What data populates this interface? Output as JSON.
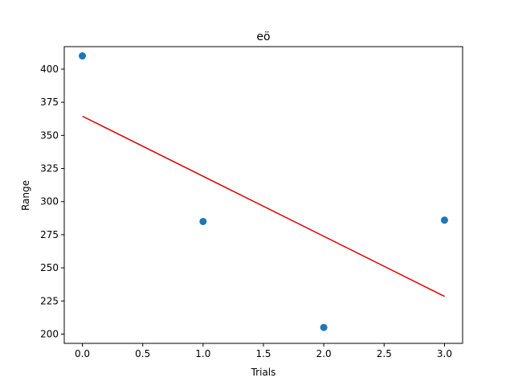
{
  "chart_data": {
    "type": "scatter",
    "title": "eö",
    "xlabel": "Trials",
    "ylabel": "Range",
    "xlim": [
      -0.15,
      3.15
    ],
    "ylim": [
      193,
      417
    ],
    "xticks": [
      0.0,
      0.5,
      1.0,
      1.5,
      2.0,
      2.5,
      3.0
    ],
    "xtick_labels": [
      "0.0",
      "0.5",
      "1.0",
      "1.5",
      "2.0",
      "2.5",
      "3.0"
    ],
    "yticks": [
      200,
      225,
      250,
      275,
      300,
      325,
      350,
      375,
      400
    ],
    "ytick_labels": [
      "200",
      "225",
      "250",
      "275",
      "300",
      "325",
      "350",
      "375",
      "400"
    ],
    "grid": false,
    "series": [
      {
        "kind": "scatter",
        "color": "#1f77b4",
        "x": [
          0,
          1,
          2,
          3
        ],
        "y": [
          410,
          285,
          205,
          286
        ]
      },
      {
        "kind": "line",
        "color": "#dd0000",
        "x": [
          0,
          3
        ],
        "y": [
          364.5,
          228.5
        ]
      }
    ]
  }
}
